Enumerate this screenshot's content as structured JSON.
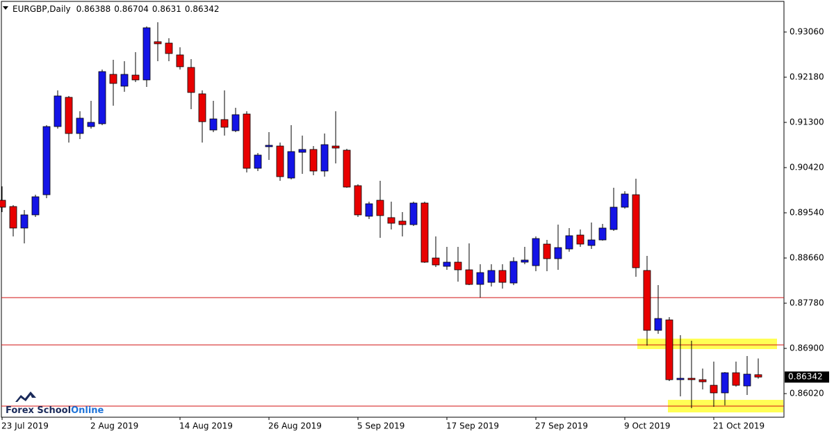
{
  "chart_data": {
    "type": "candlestick",
    "symbol": "EURGBP,Daily",
    "categories": [
      "23 Jul 2019",
      null,
      null,
      null,
      null,
      null,
      null,
      null,
      "2 Aug 2019",
      null,
      null,
      null,
      null,
      null,
      null,
      null,
      "14 Aug 2019",
      null,
      null,
      null,
      null,
      null,
      null,
      null,
      "26 Aug 2019",
      null,
      null,
      null,
      null,
      null,
      null,
      null,
      "5 Sep 2019",
      null,
      null,
      null,
      null,
      null,
      null,
      null,
      "17 Sep 2019",
      null,
      null,
      null,
      null,
      null,
      null,
      null,
      "27 Sep 2019",
      null,
      null,
      null,
      null,
      null,
      null,
      null,
      "9 Oct 2019",
      null,
      null,
      null,
      null,
      null,
      null,
      null,
      "21 Oct 2019",
      null,
      null,
      null,
      null
    ],
    "open": [
      0.89784,
      0.89662,
      0.89243,
      0.895,
      0.89892,
      0.91219,
      0.91788,
      0.91084,
      0.91219,
      0.91274,
      0.92235,
      0.92005,
      0.92221,
      0.92127,
      0.92871,
      0.92844,
      0.92614,
      0.9237,
      0.91856,
      0.91152,
      0.91355,
      0.91138,
      0.91463,
      0.90407,
      0.90827,
      0.9084,
      0.90217,
      0.90718,
      0.90773,
      0.90353,
      0.9084,
      0.90759,
      0.90068,
      0.89473,
      0.89784,
      0.89446,
      0.89378,
      0.8931,
      0.8973,
      0.8866,
      0.88498,
      0.88579,
      0.8843,
      0.88146,
      0.88186,
      0.88417,
      0.88173,
      0.88579,
      0.88511,
      0.88931,
      0.88647,
      0.88836,
      0.89107,
      0.88904,
      0.89012,
      0.89215,
      0.89649,
      0.89892,
      0.88417,
      0.87252,
      0.87455,
      0.86291,
      0.86318,
      0.86291,
      0.86182,
      0.86034,
      0.86426,
      0.86169,
      0.86388
    ],
    "high": [
      0.90055,
      0.89689,
      0.89595,
      0.89892,
      0.91246,
      0.91923,
      0.91815,
      0.91517,
      0.9172,
      0.9233,
      0.92519,
      0.92492,
      0.92668,
      0.93169,
      0.9325,
      0.92939,
      0.92763,
      0.92533,
      0.91923,
      0.9172,
      0.91923,
      0.91585,
      0.91517,
      0.90705,
      0.91111,
      0.90908,
      0.91246,
      0.91043,
      0.9084,
      0.91084,
      0.91517,
      0.90786,
      0.90096,
      0.89757,
      0.90163,
      0.89757,
      0.89554,
      0.89757,
      0.89757,
      0.8908,
      0.88877,
      0.88877,
      0.88945,
      0.88538,
      0.88538,
      0.88538,
      0.88674,
      0.88877,
      0.8908,
      0.89012,
      0.8931,
      0.89243,
      0.89215,
      0.89351,
      0.89324,
      0.90028,
      0.8996,
      0.90204,
      0.88701,
      0.88132,
      0.87509,
      0.87157,
      0.87049,
      0.86507,
      0.86643,
      0.8644,
      0.86643,
      0.86751,
      0.86704
    ],
    "low": [
      0.89554,
      0.8908,
      0.88945,
      0.89459,
      0.89825,
      0.91179,
      0.90908,
      0.90976,
      0.91179,
      0.91246,
      0.91626,
      0.91896,
      0.92086,
      0.91991,
      0.92492,
      0.92492,
      0.9233,
      0.91558,
      0.90908,
      0.91111,
      0.91043,
      0.91111,
      0.90326,
      0.90353,
      0.90569,
      0.90163,
      0.9019,
      0.90299,
      0.90272,
      0.90244,
      0.90502,
      0.90028,
      0.89459,
      0.89419,
      0.89053,
      0.89215,
      0.8908,
      0.89283,
      0.88566,
      0.88484,
      0.8843,
      0.882,
      0.88132,
      0.87888,
      0.88105,
      0.88065,
      0.88132,
      0.88538,
      0.88403,
      0.88403,
      0.8843,
      0.88782,
      0.88877,
      0.88836,
      0.88999,
      0.89188,
      0.89622,
      0.88295,
      0.86954,
      0.87184,
      0.86264,
      0.85966,
      0.85736,
      0.86101,
      0.85763,
      0.8579,
      0.86155,
      0.85993,
      0.8631
    ],
    "close": [
      0.89649,
      0.89243,
      0.895,
      0.89852,
      0.91219,
      0.91815,
      0.91084,
      0.91382,
      0.91301,
      0.92289,
      0.92059,
      0.92235,
      0.92127,
      0.93142,
      0.92831,
      0.92641,
      0.92384,
      0.91883,
      0.91314,
      0.91368,
      0.91206,
      0.9145,
      0.90407,
      0.90664,
      0.90854,
      0.90244,
      0.90732,
      0.90773,
      0.90353,
      0.90867,
      0.908,
      0.90041,
      0.895,
      0.89716,
      0.89486,
      0.89337,
      0.8931,
      0.8973,
      0.88579,
      0.88525,
      0.88579,
      0.8843,
      0.88146,
      0.88376,
      0.88417,
      0.88186,
      0.88593,
      0.8862,
      0.89039,
      0.88647,
      0.88863,
      0.89094,
      0.88931,
      0.89012,
      0.89243,
      0.89649,
      0.89906,
      0.88471,
      0.87252,
      0.87482,
      0.86291,
      0.86318,
      0.86291,
      0.8625,
      0.86034,
      0.86426,
      0.86182,
      0.86399,
      0.86342
    ],
    "up_color": "#1414e6",
    "down_color": "#e80000",
    "ylim": [
      0.8556,
      0.93656
    ],
    "yticks": [
      {
        "value": 0.9306,
        "label": "0.93060"
      },
      {
        "value": 0.9218,
        "label": "0.92180"
      },
      {
        "value": 0.913,
        "label": "0.91300"
      },
      {
        "value": 0.9042,
        "label": "0.90420"
      },
      {
        "value": 0.8954,
        "label": "0.89540"
      },
      {
        "value": 0.8866,
        "label": "0.88660"
      },
      {
        "value": 0.8778,
        "label": "0.87780"
      },
      {
        "value": 0.869,
        "label": "0.86900"
      },
      {
        "value": 0.8602,
        "label": "0.86020"
      }
    ],
    "levels": [
      0.87888,
      0.86968,
      0.85776
    ],
    "level_color": "#d01010",
    "zones": [
      [
        0.8709,
        0.86887
      ],
      [
        0.85898,
        0.85654
      ]
    ],
    "zone_color": "#ffff55",
    "logo": [
      "Forex School",
      "Online"
    ]
  }
}
